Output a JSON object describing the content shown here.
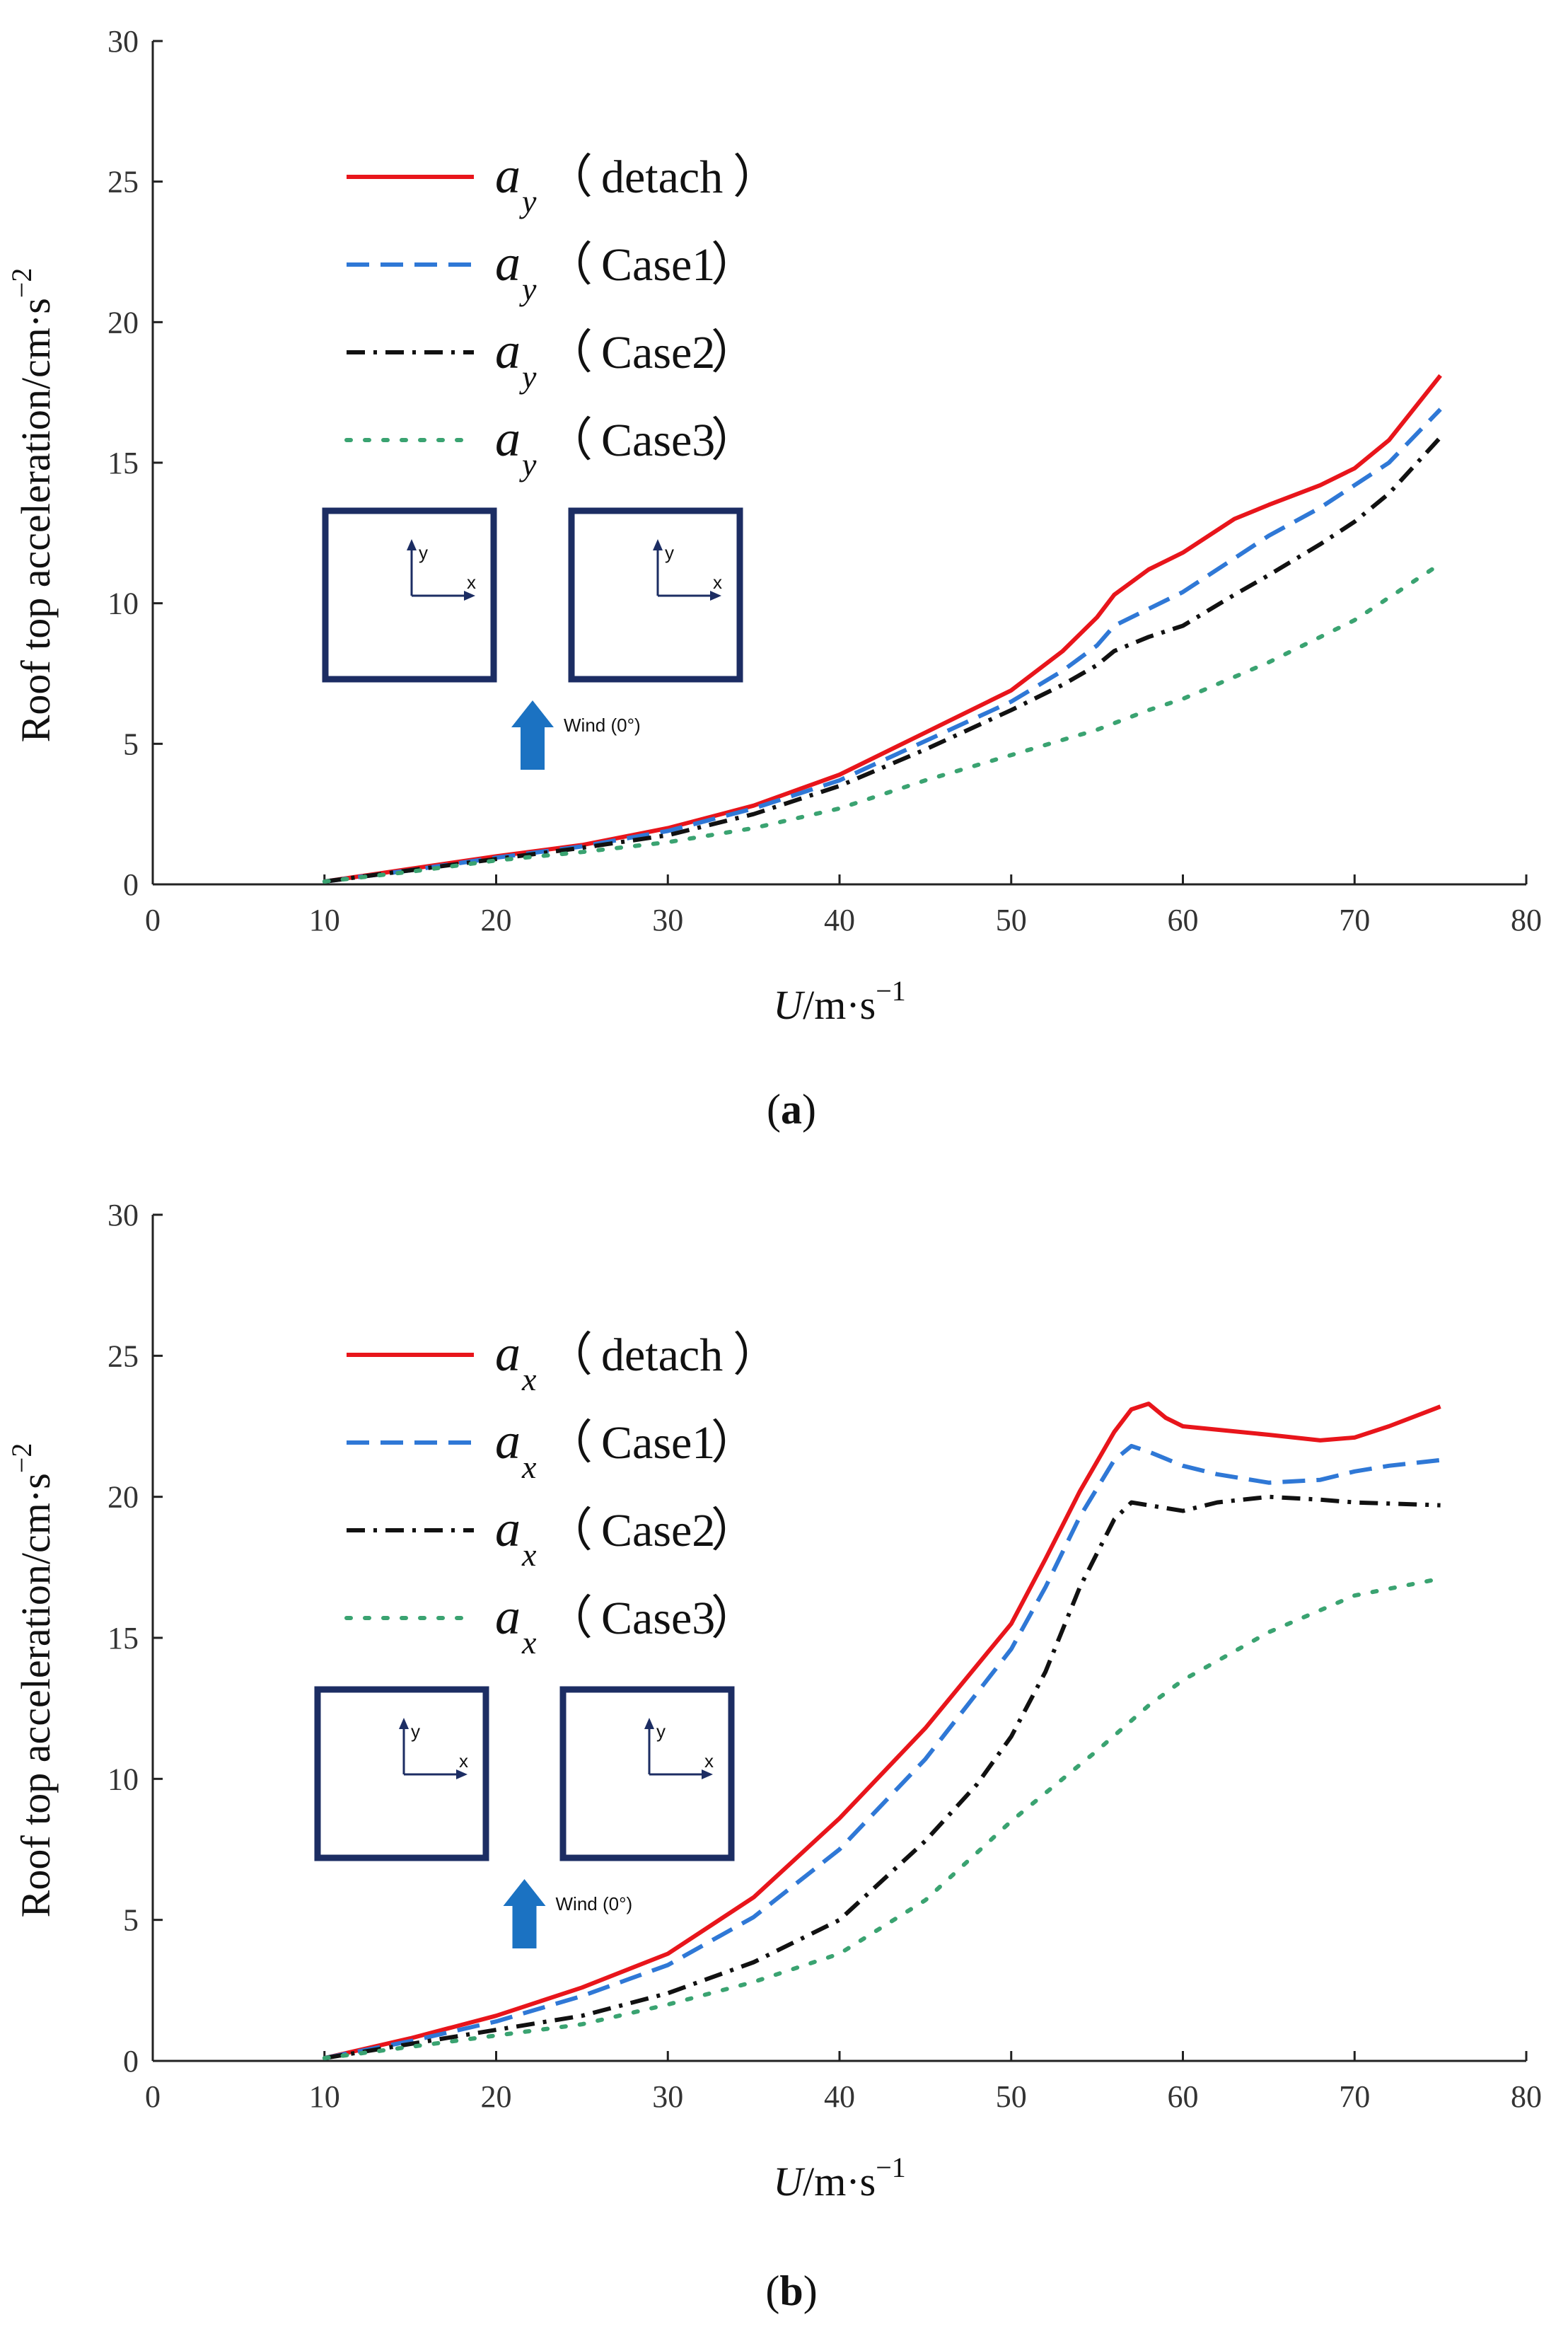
{
  "chart_data": [
    {
      "id": "a",
      "type": "line",
      "caption": "a",
      "xlabel_var": "U",
      "xlabel_unit": "/m·s",
      "xlabel_exp": "−1",
      "ylabel": "Roof top acceleration/cm·s",
      "ylabel_exp": "−2",
      "xlim": [
        0,
        80
      ],
      "ylim": [
        0,
        30
      ],
      "xticks": [
        "0",
        "10",
        "20",
        "30",
        "40",
        "50",
        "60",
        "70",
        "80"
      ],
      "yticks": [
        "0",
        "5",
        "10",
        "15",
        "20",
        "25",
        "30"
      ],
      "inset": {
        "axis_x": "x",
        "axis_y": "y",
        "wind_label": "Wind (0°)"
      },
      "series": [
        {
          "name": "(detach)",
          "symbol": "a",
          "subscript": "y",
          "color": "#e8151b",
          "style": "solid",
          "x": [
            10,
            15,
            20,
            25,
            30,
            35,
            40,
            45,
            50,
            53,
            55,
            56,
            58,
            60,
            63,
            65,
            68,
            70,
            72,
            75
          ],
          "y": [
            0.1,
            0.55,
            1.0,
            1.4,
            2.0,
            2.8,
            3.9,
            5.4,
            6.9,
            8.3,
            9.5,
            10.3,
            11.2,
            11.8,
            13.0,
            13.5,
            14.2,
            14.8,
            15.8,
            18.1
          ]
        },
        {
          "name": "(Case1)",
          "symbol": "a",
          "subscript": "y",
          "color": "#2f78d6",
          "style": "dashed",
          "x": [
            10,
            15,
            20,
            25,
            30,
            35,
            40,
            45,
            50,
            53,
            55,
            56,
            58,
            60,
            63,
            65,
            68,
            70,
            72,
            75
          ],
          "y": [
            0.1,
            0.5,
            0.95,
            1.35,
            1.9,
            2.7,
            3.7,
            5.1,
            6.5,
            7.6,
            8.5,
            9.2,
            9.8,
            10.4,
            11.6,
            12.4,
            13.4,
            14.2,
            15.0,
            16.9
          ]
        },
        {
          "name": "(Case2)",
          "symbol": "a",
          "subscript": "y",
          "color": "#111111",
          "style": "dashdot",
          "x": [
            10,
            15,
            20,
            25,
            30,
            35,
            40,
            45,
            50,
            53,
            55,
            56,
            58,
            60,
            63,
            65,
            68,
            70,
            72,
            75
          ],
          "y": [
            0.1,
            0.5,
            0.9,
            1.3,
            1.75,
            2.5,
            3.5,
            4.8,
            6.2,
            7.1,
            7.8,
            8.3,
            8.8,
            9.2,
            10.3,
            11.0,
            12.1,
            12.9,
            13.9,
            15.9
          ]
        },
        {
          "name": "(Case3)",
          "symbol": "a",
          "subscript": "y",
          "color": "#3aa371",
          "style": "dotted",
          "x": [
            10,
            15,
            20,
            25,
            30,
            35,
            40,
            45,
            50,
            55,
            58,
            60,
            65,
            70,
            75
          ],
          "y": [
            0.1,
            0.45,
            0.85,
            1.15,
            1.5,
            2.0,
            2.7,
            3.7,
            4.6,
            5.5,
            6.2,
            6.6,
            7.9,
            9.4,
            11.4
          ]
        }
      ]
    },
    {
      "id": "b",
      "type": "line",
      "caption": "b",
      "xlabel_var": "U",
      "xlabel_unit": "/m·s",
      "xlabel_exp": "−1",
      "ylabel": "Roof top acceleration/cm·s",
      "ylabel_exp": "−2",
      "xlim": [
        0,
        80
      ],
      "ylim": [
        0,
        30
      ],
      "xticks": [
        "0",
        "10",
        "20",
        "30",
        "40",
        "50",
        "60",
        "70",
        "80"
      ],
      "yticks": [
        "0",
        "5",
        "10",
        "15",
        "20",
        "25",
        "30"
      ],
      "inset": {
        "axis_x": "x",
        "axis_y": "y",
        "wind_label": "Wind (0°)"
      },
      "series": [
        {
          "name": "(detach)",
          "symbol": "a",
          "subscript": "x",
          "color": "#e8151b",
          "style": "solid",
          "x": [
            10,
            15,
            20,
            25,
            30,
            35,
            40,
            45,
            50,
            52,
            54,
            56,
            57,
            58,
            59,
            60,
            65,
            68,
            70,
            72,
            75
          ],
          "y": [
            0.1,
            0.8,
            1.6,
            2.6,
            3.8,
            5.8,
            8.6,
            11.8,
            15.5,
            17.8,
            20.2,
            22.3,
            23.1,
            23.3,
            22.8,
            22.5,
            22.2,
            22.0,
            22.1,
            22.5,
            23.2
          ]
        },
        {
          "name": "(Case1)",
          "symbol": "a",
          "subscript": "x",
          "color": "#2f78d6",
          "style": "dashed",
          "x": [
            10,
            15,
            20,
            25,
            30,
            35,
            40,
            45,
            50,
            52,
            54,
            56,
            57,
            58,
            60,
            62,
            65,
            68,
            70,
            72,
            75
          ],
          "y": [
            0.1,
            0.7,
            1.4,
            2.3,
            3.4,
            5.1,
            7.5,
            10.7,
            14.6,
            16.8,
            19.3,
            21.3,
            21.8,
            21.6,
            21.1,
            20.8,
            20.5,
            20.6,
            20.9,
            21.1,
            21.3
          ]
        },
        {
          "name": "(Case2)",
          "symbol": "a",
          "subscript": "x",
          "color": "#111111",
          "style": "dashdot",
          "x": [
            10,
            15,
            20,
            25,
            30,
            35,
            40,
            45,
            48,
            50,
            52,
            54,
            56,
            57,
            58,
            60,
            62,
            65,
            68,
            70,
            75
          ],
          "y": [
            0.1,
            0.6,
            1.1,
            1.6,
            2.4,
            3.5,
            5.0,
            7.8,
            9.8,
            11.5,
            13.8,
            16.8,
            19.2,
            19.8,
            19.7,
            19.5,
            19.8,
            20.0,
            19.9,
            19.8,
            19.7
          ]
        },
        {
          "name": "(Case3)",
          "symbol": "a",
          "subscript": "x",
          "color": "#3aa371",
          "style": "dotted",
          "x": [
            10,
            15,
            20,
            25,
            30,
            35,
            40,
            45,
            50,
            55,
            58,
            60,
            65,
            70,
            75
          ],
          "y": [
            0.1,
            0.5,
            0.9,
            1.3,
            2.0,
            2.8,
            3.8,
            5.7,
            8.5,
            11.0,
            12.6,
            13.5,
            15.2,
            16.5,
            17.1
          ]
        }
      ]
    }
  ]
}
